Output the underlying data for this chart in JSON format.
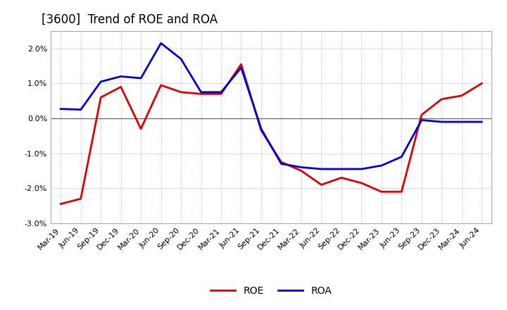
{
  "title": "[3600]  Trend of ROE and ROA",
  "labels": [
    "Mar-19",
    "Jun-19",
    "Sep-19",
    "Dec-19",
    "Mar-20",
    "Jun-20",
    "Sep-20",
    "Dec-20",
    "Mar-21",
    "Jun-21",
    "Sep-21",
    "Dec-21",
    "Mar-22",
    "Jun-22",
    "Sep-22",
    "Dec-22",
    "Mar-23",
    "Jun-23",
    "Sep-23",
    "Dec-23",
    "Mar-24",
    "Jun-24"
  ],
  "ROE": [
    -2.45,
    -2.3,
    0.6,
    0.9,
    -0.3,
    0.95,
    0.75,
    0.7,
    0.7,
    1.55,
    -0.35,
    -1.25,
    -1.5,
    -1.9,
    -1.7,
    -1.85,
    -2.1,
    -2.1,
    0.1,
    0.55,
    0.65,
    1.0
  ],
  "ROA": [
    0.27,
    0.25,
    1.05,
    1.2,
    1.15,
    2.15,
    1.7,
    0.75,
    0.75,
    1.45,
    -0.3,
    -1.3,
    -1.4,
    -1.45,
    -1.45,
    -1.45,
    -1.35,
    -1.1,
    -0.05,
    -0.1,
    -0.1,
    -0.1
  ],
  "ROE_color": "#dd0000",
  "ROA_color": "#0000cc",
  "bg_color": "#ffffff",
  "grid_color": "#aaaaaa",
  "ylim": [
    -3.0,
    2.5
  ],
  "yticks": [
    -3.0,
    -2.0,
    -1.0,
    0.0,
    1.0,
    2.0
  ],
  "line_width": 2.0,
  "title_fontsize": 12,
  "legend_fontsize": 10,
  "tick_fontsize": 8
}
